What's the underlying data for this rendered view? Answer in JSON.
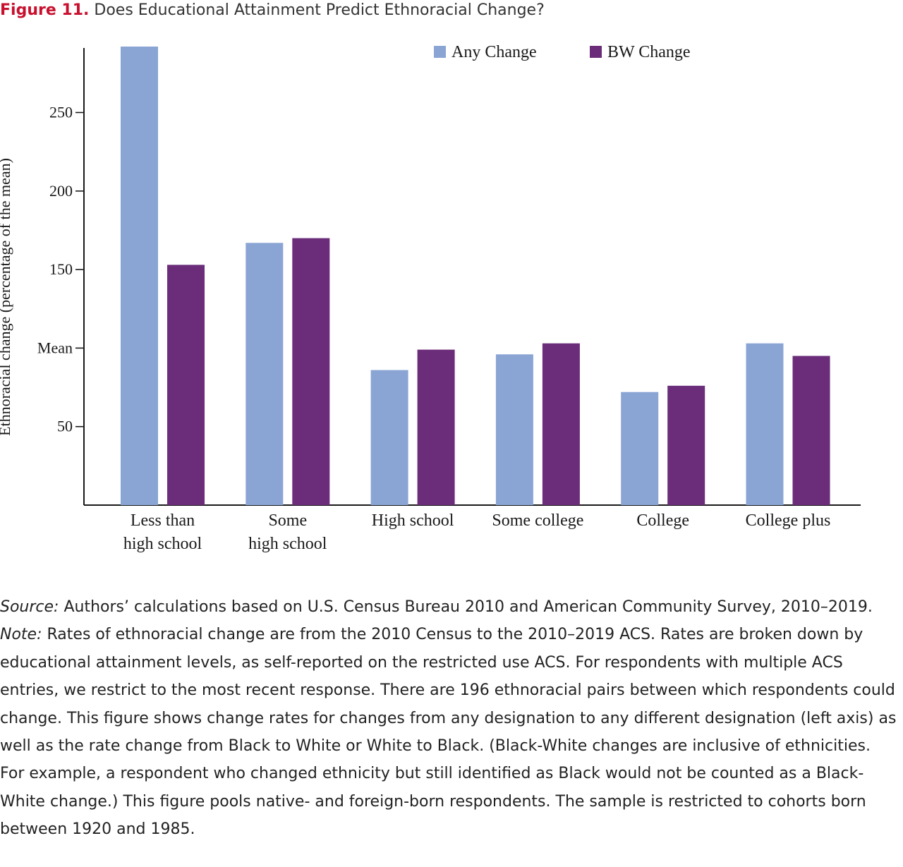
{
  "figure": {
    "label": "Figure 11.",
    "title": "Does Educational Attainment Predict Ethnoracial Change?"
  },
  "chart_data": {
    "type": "bar",
    "title": "Does Educational Attainment Predict Ethnoracial Change?",
    "ylabel": "Ethnoracial change (percentage of the mean)",
    "xlabel": "",
    "ylim": [
      0,
      292
    ],
    "yticks": [
      {
        "value": 50,
        "label": "50"
      },
      {
        "value": 100,
        "label": "Mean"
      },
      {
        "value": 150,
        "label": "150"
      },
      {
        "value": 200,
        "label": "200"
      },
      {
        "value": 250,
        "label": "250"
      }
    ],
    "categories": [
      [
        "Less than",
        "high school"
      ],
      [
        "Some",
        "high school"
      ],
      [
        "High school"
      ],
      [
        "Some college"
      ],
      [
        "College"
      ],
      [
        "College plus"
      ]
    ],
    "series": [
      {
        "name": "Any Change",
        "color": "#8aa5d4",
        "values": [
          292,
          167,
          86,
          96,
          72,
          103
        ]
      },
      {
        "name": "BW Change",
        "color": "#6b2d7a",
        "values": [
          153,
          170,
          99,
          103,
          76,
          95
        ]
      }
    ],
    "legend": "top-right",
    "grid": false
  },
  "source": {
    "label": "Source:",
    "text": " Authors’ calculations based on U.S. Census Bureau 2010 and American Community Survey, 2010–2019."
  },
  "note": {
    "label": "Note:",
    "text": " Rates of ethnoracial change are from the 2010 Census to the 2010–2019 ACS. Rates are broken down by educational attainment levels, as self-reported on the restricted use ACS. For respondents with multiple ACS entries, we restrict to the most recent response. There are 196 ethnoracial pairs between which respondents could change. This figure shows change rates for changes from any designation to any different designation (left axis) as well as the rate change from Black to White or White to Black. (Black-White changes are inclusive of ethnicities. For example, a respondent who changed ethnicity but still identified as Black would not be counted as a Black-White change.) This figure pools native- and foreign-born respondents. The sample is restricted to cohorts born between 1920 and 1985."
  }
}
